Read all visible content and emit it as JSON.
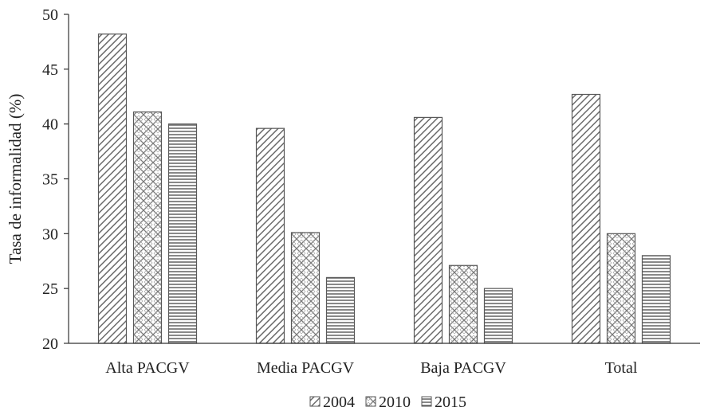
{
  "chart_data": {
    "type": "bar",
    "title": "",
    "xlabel": "",
    "ylabel": "Tasa de informalidad (%)",
    "categories": [
      "Alta PACGV",
      "Media PACGV",
      "Baja PACGV",
      "Total"
    ],
    "series": [
      {
        "name": "2004",
        "values": [
          48.2,
          39.6,
          40.6,
          42.7
        ],
        "pattern": "diagonal-stripes"
      },
      {
        "name": "2010",
        "values": [
          41.1,
          30.1,
          27.1,
          30.0
        ],
        "pattern": "crosshatch"
      },
      {
        "name": "2015",
        "values": [
          40.0,
          26.0,
          25.0,
          28.0
        ],
        "pattern": "horizontal-stripes"
      }
    ],
    "ylim": [
      20,
      50
    ],
    "yticks": [
      20,
      25,
      30,
      35,
      40,
      45,
      50
    ],
    "grid": false,
    "legend_position": "bottom",
    "colors": {
      "bar_stroke": "#595959",
      "pattern": "#6b6b6b",
      "axis": "#333333"
    }
  }
}
